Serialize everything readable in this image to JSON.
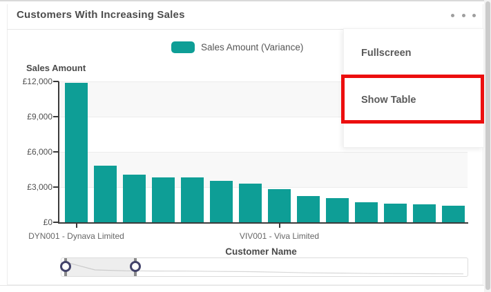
{
  "card": {
    "title": "Customers With Increasing Sales"
  },
  "header": {
    "more_options_icon": "ellipsis-icon"
  },
  "legend": {
    "items": [
      {
        "label": "Sales Amount (Variance)",
        "color": "#0e9e96"
      }
    ]
  },
  "menu": {
    "items": [
      {
        "label": "Fullscreen"
      },
      {
        "label": "Show Table"
      }
    ]
  },
  "annotation": {
    "type": "highlight-box",
    "color": "#ec0e0e",
    "target": "Show Table"
  },
  "chart_data": {
    "type": "bar",
    "ylabel": "Sales Amount",
    "xlabel": "Customer Name",
    "ylim": [
      0,
      12000
    ],
    "y_ticks": [
      "£12,000",
      "£9,000",
      "£6,000",
      "£3,000",
      "£0"
    ],
    "n_bars": 14,
    "series": [
      {
        "name": "Sales Amount (Variance)",
        "color": "#0e9e96",
        "values": [
          11900,
          4800,
          4050,
          3850,
          3800,
          3500,
          3300,
          2850,
          2250,
          2050,
          1700,
          1600,
          1500,
          1400
        ]
      }
    ],
    "x_tick_labels": [
      {
        "index": 0,
        "label": "DYN001 - Dynava Limited"
      },
      {
        "index": 7,
        "label": "VIV001 - Viva Limited"
      }
    ],
    "grid": "alternating-horizontal-bands",
    "legend_position": "top"
  },
  "slider": {
    "selected_range": [
      0.007,
      0.178
    ]
  }
}
